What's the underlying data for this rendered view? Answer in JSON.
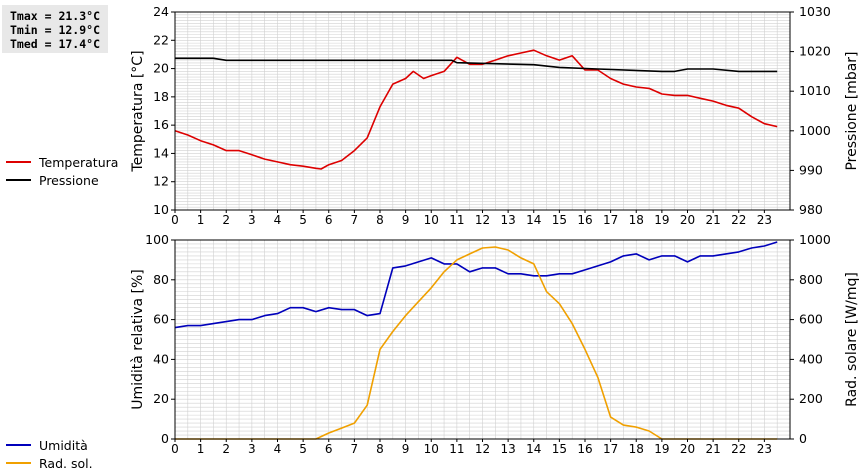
{
  "stats": {
    "tmax": "Tmax = 21.3°C",
    "tmin": "Tmin = 12.9°C",
    "tmed": "Tmed = 17.4°C"
  },
  "colors": {
    "temperature": "#dd0000",
    "pressure": "#000000",
    "humidity": "#0000bb",
    "radiation": "#f0a000",
    "grid": "#d0d0d0"
  },
  "chart_data": [
    {
      "type": "line",
      "xlim": [
        0,
        24
      ],
      "xticks": [
        0,
        1,
        2,
        3,
        4,
        5,
        6,
        7,
        8,
        9,
        10,
        11,
        12,
        13,
        14,
        15,
        16,
        17,
        18,
        19,
        20,
        21,
        22,
        23
      ],
      "ylabel": "Temperatura [°C]",
      "ylim": [
        10,
        24
      ],
      "yticks": [
        10,
        12,
        14,
        16,
        18,
        20,
        22,
        24
      ],
      "y2label": "Pressione [mbar]",
      "y2lim": [
        980,
        1030
      ],
      "y2ticks": [
        980,
        990,
        1000,
        1010,
        1020,
        1030
      ],
      "grid": true,
      "legend": "left",
      "series": [
        {
          "name": "Temperatura",
          "axis": "left",
          "x": [
            0,
            0.5,
            1,
            1.5,
            2,
            2.5,
            3,
            3.5,
            4,
            4.5,
            5,
            5.5,
            5.7,
            6,
            6.5,
            7,
            7.5,
            8,
            8.5,
            9,
            9.3,
            9.7,
            10,
            10.5,
            11,
            11.5,
            12,
            12.5,
            13,
            13.5,
            14,
            14.5,
            15,
            15.5,
            16,
            16.5,
            17,
            17.5,
            18,
            18.5,
            19,
            19.5,
            20,
            20.5,
            21,
            21.5,
            22,
            22.5,
            23,
            23.5
          ],
          "values": [
            15.6,
            15.3,
            14.9,
            14.6,
            14.2,
            14.2,
            13.9,
            13.6,
            13.4,
            13.2,
            13.1,
            12.95,
            12.9,
            13.2,
            13.5,
            14.2,
            15.1,
            17.3,
            18.9,
            19.3,
            19.8,
            19.3,
            19.5,
            19.8,
            20.8,
            20.3,
            20.3,
            20.6,
            20.9,
            21.1,
            21.3,
            20.9,
            20.6,
            20.9,
            19.9,
            19.9,
            19.3,
            18.9,
            18.7,
            18.6,
            18.2,
            18.1,
            18.1,
            17.9,
            17.7,
            17.4,
            17.2,
            16.6,
            16.1,
            15.9
          ]
        },
        {
          "name": "Pressione",
          "axis": "right",
          "x": [
            0,
            1.5,
            2,
            10.8,
            11,
            14,
            15,
            16.5,
            19,
            19.5,
            20,
            21,
            22,
            23.5
          ],
          "values": [
            1018.3,
            1018.3,
            1017.8,
            1017.8,
            1017.2,
            1016.7,
            1016.0,
            1015.6,
            1015.0,
            1015.0,
            1015.6,
            1015.6,
            1015.0,
            1015.0
          ]
        }
      ]
    },
    {
      "type": "line",
      "xlim": [
        0,
        24
      ],
      "xticks": [
        0,
        1,
        2,
        3,
        4,
        5,
        6,
        7,
        8,
        9,
        10,
        11,
        12,
        13,
        14,
        15,
        16,
        17,
        18,
        19,
        20,
        21,
        22,
        23
      ],
      "ylabel": "Umidità relativa [%]",
      "ylim": [
        0,
        100
      ],
      "yticks": [
        0,
        20,
        40,
        60,
        80,
        100
      ],
      "y2label": "Rad. solare [W/mq]",
      "y2lim": [
        0,
        1000
      ],
      "y2ticks": [
        0,
        200,
        400,
        600,
        800,
        1000
      ],
      "grid": true,
      "legend": "left",
      "series": [
        {
          "name": "Umidità",
          "axis": "left",
          "x": [
            0,
            0.5,
            1,
            1.5,
            2,
            2.5,
            3,
            3.5,
            4,
            4.5,
            5,
            5.5,
            6,
            6.5,
            7,
            7.5,
            8,
            8.5,
            9,
            9.5,
            10,
            10.5,
            11,
            11.5,
            12,
            12.5,
            13,
            13.5,
            14,
            14.5,
            15,
            15.5,
            16,
            16.5,
            17,
            17.5,
            18,
            18.5,
            19,
            19.5,
            20,
            20.5,
            21,
            21.5,
            22,
            22.5,
            23,
            23.5
          ],
          "values": [
            56,
            57,
            57,
            58,
            59,
            60,
            60,
            62,
            63,
            66,
            66,
            64,
            66,
            65,
            65,
            62,
            63,
            86,
            87,
            89,
            91,
            88,
            88,
            84,
            86,
            86,
            83,
            83,
            82,
            82,
            83,
            83,
            85,
            87,
            89,
            92,
            93,
            90,
            92,
            92,
            89,
            92,
            92,
            93,
            94,
            96,
            97,
            99
          ]
        },
        {
          "name": "Rad. sol.",
          "axis": "right",
          "x": [
            0,
            5.5,
            6,
            6.5,
            7,
            7.5,
            8,
            8.5,
            9,
            9.5,
            10,
            10.5,
            11,
            11.5,
            12,
            12.5,
            13,
            13.5,
            14,
            14.5,
            15,
            15.5,
            16,
            16.5,
            17,
            17.5,
            18,
            18.5,
            19,
            19.5,
            20,
            21,
            22,
            23,
            23.5
          ],
          "values": [
            0,
            0,
            30,
            55,
            80,
            170,
            450,
            540,
            620,
            690,
            760,
            840,
            900,
            930,
            960,
            965,
            950,
            910,
            880,
            740,
            680,
            580,
            450,
            310,
            110,
            70,
            60,
            40,
            0,
            0,
            0,
            0,
            0,
            0,
            0
          ]
        }
      ]
    }
  ]
}
